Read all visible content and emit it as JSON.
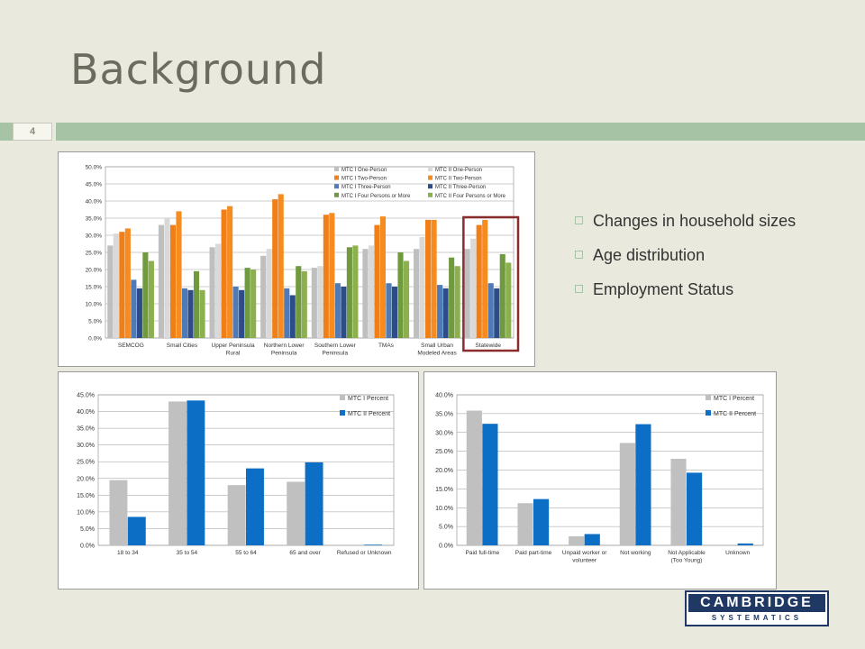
{
  "slide": {
    "title": "Background",
    "number": "4",
    "bullets": [
      "Changes in household sizes",
      "Age distribution",
      "Employment Status"
    ],
    "logo": {
      "top": "CAMBRIDGE",
      "bottom": "SYSTEMATICS"
    }
  },
  "colors": {
    "mtc1_one": "#bfbfbf",
    "mtc2_one": "#d9d9d9",
    "mtc1_two": "#f07f17",
    "mtc2_two": "#f68b1f",
    "mtc1_three": "#4f7ab8",
    "mtc2_three": "#2c4d8a",
    "mtc1_four": "#6f9a3e",
    "mtc2_four": "#8db04f",
    "percent1": "#c0c0c0",
    "percent2": "#0c6ec4",
    "highlight": "#8b2c2c"
  },
  "chart_data": [
    {
      "type": "bar",
      "ylim": [
        0,
        50
      ],
      "yticks": [
        "0.0%",
        "5.0%",
        "10.0%",
        "15.0%",
        "20.0%",
        "25.0%",
        "30.0%",
        "35.0%",
        "40.0%",
        "45.0%",
        "50.0%"
      ],
      "categories": [
        [
          "SEMCOG"
        ],
        [
          "Small Cities"
        ],
        [
          "Upper Peninsula",
          "Rural"
        ],
        [
          "Northern Lower",
          "Peninsula"
        ],
        [
          "Southern Lower",
          "Peninsula"
        ],
        [
          "TMAs"
        ],
        [
          "Small Urban",
          "Modeled Areas"
        ],
        [
          "Statewide"
        ]
      ],
      "series": [
        {
          "name": "MTC I One-Person",
          "color": "#bfbfbf",
          "values": [
            27.0,
            33.0,
            26.5,
            24.0,
            20.5,
            26.0,
            26.0,
            26.0
          ]
        },
        {
          "name": "MTC II One-Person",
          "color": "#d9d9d9",
          "values": [
            30.5,
            35.0,
            27.5,
            26.0,
            21.0,
            27.0,
            29.5,
            29.0
          ]
        },
        {
          "name": "MTC I Two-Person",
          "color": "#f07f17",
          "values": [
            31.0,
            33.0,
            37.5,
            40.5,
            36.0,
            33.0,
            34.5,
            33.0
          ]
        },
        {
          "name": "MTC II Two-Person",
          "color": "#f68b1f",
          "values": [
            32.0,
            37.0,
            38.5,
            42.0,
            36.5,
            35.5,
            34.5,
            34.5
          ]
        },
        {
          "name": "MTC I Three-Person",
          "color": "#4f7ab8",
          "values": [
            17.0,
            14.5,
            15.0,
            14.5,
            16.0,
            16.0,
            15.5,
            16.0
          ]
        },
        {
          "name": "MTC II Three-Person",
          "color": "#2c4d8a",
          "values": [
            14.5,
            14.0,
            14.0,
            12.5,
            15.0,
            15.0,
            14.5,
            14.5
          ]
        },
        {
          "name": "MTC I Four Persons or More",
          "color": "#6f9a3e",
          "values": [
            25.0,
            19.5,
            20.5,
            21.0,
            26.5,
            25.0,
            23.5,
            24.5
          ]
        },
        {
          "name": "MTC II Four Persons or More",
          "color": "#8db04f",
          "values": [
            22.5,
            14.0,
            20.0,
            19.5,
            27.0,
            22.5,
            21.0,
            22.0
          ]
        }
      ],
      "highlight_category": "Statewide"
    },
    {
      "type": "bar",
      "ylim": [
        0,
        45
      ],
      "yticks": [
        "0.0%",
        "5.0%",
        "10.0%",
        "15.0%",
        "20.0%",
        "25.0%",
        "30.0%",
        "35.0%",
        "40.0%",
        "45.0%"
      ],
      "categories": [
        [
          "18 to 34"
        ],
        [
          "35 to 54"
        ],
        [
          "55 to 64"
        ],
        [
          "65 and over"
        ],
        [
          "Refused or Unknown"
        ]
      ],
      "series": [
        {
          "name": "MTC I Percent",
          "color": "#c0c0c0",
          "values": [
            19.5,
            43.0,
            18.0,
            19.0,
            0.0
          ]
        },
        {
          "name": "MTC II Percent",
          "color": "#0c6ec4",
          "values": [
            8.5,
            43.3,
            23.0,
            24.8,
            0.2
          ]
        }
      ]
    },
    {
      "type": "bar",
      "ylim": [
        0,
        40
      ],
      "yticks": [
        "0.0%",
        "5.0%",
        "10.0%",
        "15.0%",
        "20.0%",
        "25.0%",
        "30.0%",
        "35.0%",
        "40.0%"
      ],
      "categories": [
        [
          "Paid full-time"
        ],
        [
          "Paid part-time"
        ],
        [
          "Unpaid worker or",
          "volunteer"
        ],
        [
          "Not working"
        ],
        [
          "Not Applicable",
          "(Too Young)"
        ],
        [
          "Unknown"
        ]
      ],
      "series": [
        {
          "name": "MTC I Percent",
          "color": "#c0c0c0",
          "values": [
            35.8,
            11.2,
            2.4,
            27.2,
            23.0,
            0.0
          ]
        },
        {
          "name": "MTC II Percent",
          "color": "#0c6ec4",
          "values": [
            32.3,
            12.3,
            3.0,
            32.2,
            19.3,
            0.5
          ]
        }
      ]
    }
  ]
}
